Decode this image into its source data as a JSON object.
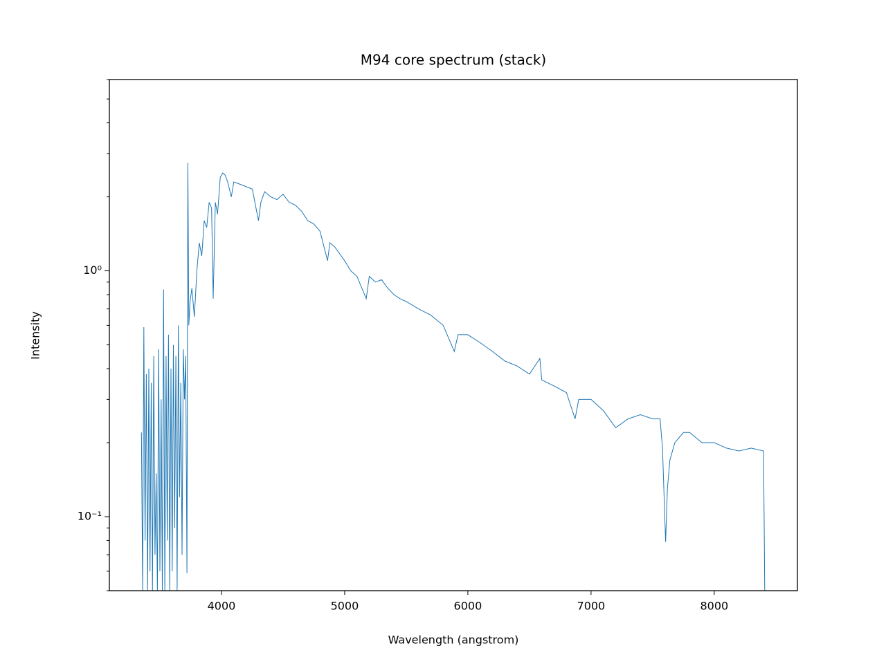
{
  "chart_data": {
    "type": "line",
    "title": "M94 core spectrum (stack)",
    "xlabel": "Wavelength (angstrom)",
    "ylabel": "Intensity",
    "color": "#1f77b4",
    "yscale": "log",
    "xlim": [
      3090,
      8675
    ],
    "ylim": [
      0.05,
      6.0
    ],
    "xticks": [
      4000,
      5000,
      6000,
      7000,
      8000
    ],
    "yticks": [
      {
        "value": 0.1,
        "label": "10⁻¹"
      },
      {
        "value": 1,
        "label": "10⁰"
      }
    ],
    "yminor_ticks": [
      0.05,
      0.06,
      0.07,
      0.08,
      0.09,
      0.2,
      0.3,
      0.4,
      0.5,
      0.6,
      0.7,
      0.8,
      0.9,
      2,
      3,
      4,
      5,
      6
    ],
    "x": [
      3350,
      3360,
      3370,
      3380,
      3390,
      3400,
      3410,
      3420,
      3430,
      3440,
      3450,
      3460,
      3470,
      3480,
      3490,
      3500,
      3510,
      3520,
      3530,
      3540,
      3550,
      3560,
      3570,
      3580,
      3590,
      3600,
      3610,
      3620,
      3630,
      3640,
      3650,
      3660,
      3670,
      3680,
      3690,
      3700,
      3710,
      3720,
      3727,
      3735,
      3745,
      3760,
      3780,
      3800,
      3820,
      3840,
      3860,
      3880,
      3900,
      3920,
      3933,
      3950,
      3968,
      3990,
      4010,
      4030,
      4050,
      4080,
      4100,
      4150,
      4200,
      4250,
      4300,
      4320,
      4350,
      4400,
      4450,
      4500,
      4550,
      4600,
      4650,
      4700,
      4750,
      4800,
      4861,
      4880,
      4920,
      5000,
      5050,
      5100,
      5175,
      5200,
      5250,
      5300,
      5350,
      5400,
      5450,
      5500,
      5600,
      5700,
      5800,
      5890,
      5920,
      6000,
      6100,
      6200,
      6300,
      6400,
      6500,
      6584,
      6600,
      6700,
      6800,
      6870,
      6900,
      7000,
      7100,
      7200,
      7300,
      7400,
      7500,
      7560,
      7580,
      7605,
      7620,
      7640,
      7680,
      7750,
      7800,
      7900,
      8000,
      8100,
      8200,
      8300,
      8400,
      8410
    ],
    "values": [
      0.22,
      0.05,
      0.59,
      0.08,
      0.38,
      0.05,
      0.4,
      0.06,
      0.35,
      0.05,
      0.45,
      0.07,
      0.15,
      0.05,
      0.48,
      0.06,
      0.3,
      0.05,
      0.84,
      0.05,
      0.45,
      0.08,
      0.55,
      0.05,
      0.4,
      0.06,
      0.5,
      0.09,
      0.45,
      0.05,
      0.6,
      0.12,
      0.35,
      0.07,
      0.48,
      0.3,
      0.45,
      0.059,
      2.75,
      0.6,
      0.75,
      0.85,
      0.65,
      1.0,
      1.3,
      1.15,
      1.6,
      1.5,
      1.9,
      1.8,
      0.77,
      1.9,
      1.7,
      2.4,
      2.5,
      2.45,
      2.3,
      2.0,
      2.3,
      2.25,
      2.2,
      2.15,
      1.6,
      1.9,
      2.1,
      2.0,
      1.95,
      2.05,
      1.9,
      1.85,
      1.75,
      1.6,
      1.55,
      1.45,
      1.1,
      1.3,
      1.25,
      1.1,
      1.0,
      0.95,
      0.77,
      0.95,
      0.9,
      0.92,
      0.85,
      0.8,
      0.77,
      0.75,
      0.7,
      0.66,
      0.6,
      0.47,
      0.55,
      0.55,
      0.51,
      0.47,
      0.43,
      0.41,
      0.38,
      0.44,
      0.36,
      0.34,
      0.32,
      0.25,
      0.3,
      0.3,
      0.27,
      0.23,
      0.25,
      0.26,
      0.25,
      0.25,
      0.19,
      0.079,
      0.13,
      0.17,
      0.2,
      0.22,
      0.22,
      0.2,
      0.2,
      0.19,
      0.185,
      0.19,
      0.185,
      0.05
    ]
  }
}
